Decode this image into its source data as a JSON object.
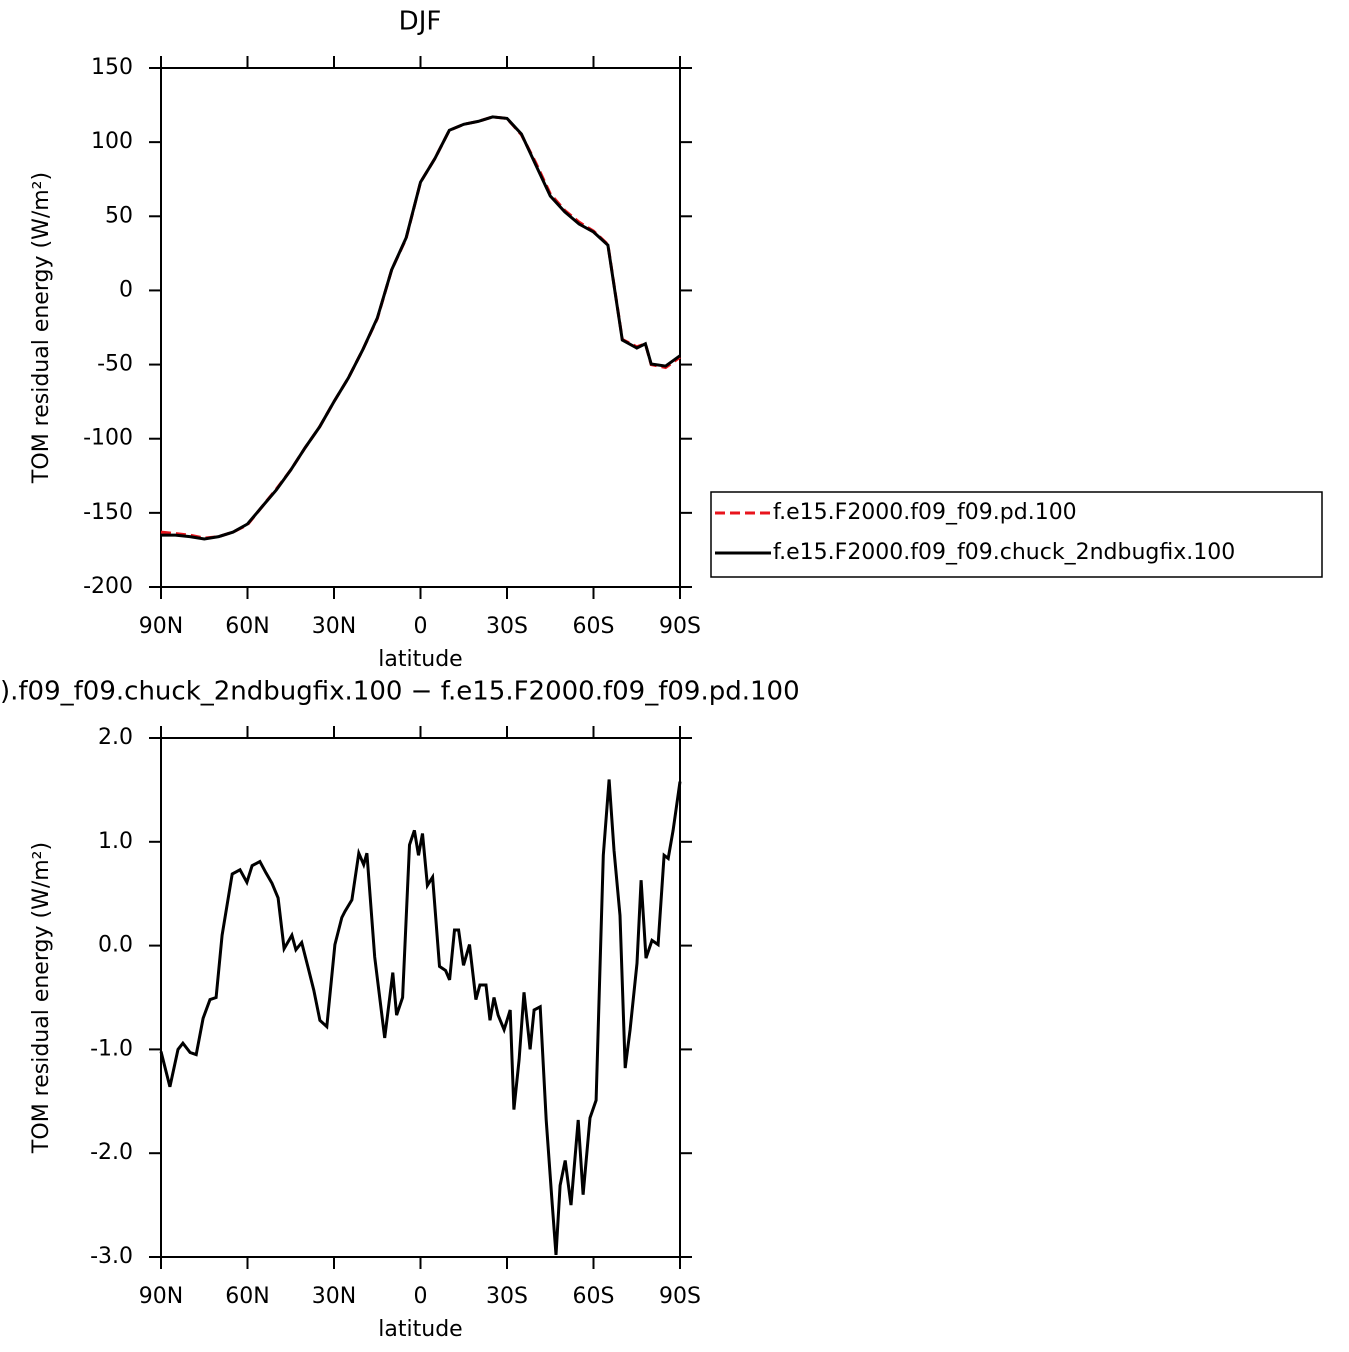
{
  "chart_data": [
    {
      "type": "line",
      "title": "DJF",
      "xlabel": "latitude",
      "ylabel": "TOM residual energy (W/m²)",
      "xlim": [
        90,
        -90
      ],
      "xticks": [
        {
          "value": 90,
          "label": "90N"
        },
        {
          "value": 60,
          "label": "60N"
        },
        {
          "value": 30,
          "label": "30N"
        },
        0,
        {
          "value": -30,
          "label": "30S"
        },
        {
          "value": -60,
          "label": "60S"
        },
        {
          "value": -90,
          "label": "90S"
        }
      ],
      "ylim": [
        -200,
        150
      ],
      "yticks": [
        150,
        100,
        50,
        0,
        -50,
        -100,
        -150,
        -200
      ],
      "legend": "right",
      "x": [
        90,
        85,
        80,
        75,
        70,
        65,
        60,
        55,
        50,
        45,
        40,
        35,
        30,
        25,
        20,
        15,
        10,
        5,
        0,
        -5,
        -10,
        -15,
        -20,
        -25,
        -30,
        -35,
        -40,
        -45,
        -50,
        -55,
        -60,
        -65,
        -70,
        -75,
        -78,
        -80,
        -85,
        -90
      ],
      "series": [
        {
          "name": "f.e15.F2000.f09_f09.pd.100",
          "color": "#e8141c",
          "style": "dashed",
          "values": [
            -163,
            -164,
            -165,
            -167,
            -166,
            -163,
            -158,
            -146,
            -134,
            -121,
            -106,
            -92,
            -75,
            -59,
            -40,
            -19,
            14,
            35,
            73,
            89,
            108,
            112,
            114,
            117,
            116,
            105,
            86,
            65,
            54,
            46,
            40,
            31,
            -33,
            -38,
            -36,
            -50,
            -52,
            -45
          ]
        },
        {
          "name": "f.e15.F2000.f09_f09.chuck_2ndbugfix.100",
          "color": "#000000",
          "style": "solid",
          "values": [
            -165,
            -165,
            -166,
            -167.6,
            -166,
            -163,
            -157.5,
            -146,
            -134.6,
            -121,
            -106,
            -92,
            -75,
            -59,
            -40,
            -18.6,
            14,
            35.4,
            73,
            89,
            108,
            112,
            114,
            117,
            116,
            105.5,
            84.6,
            63.7,
            53,
            44.8,
            39.4,
            30.6,
            -33.4,
            -38.8,
            -36,
            -49.6,
            -51,
            -44
          ]
        }
      ]
    },
    {
      "type": "line",
      "title": ").f09_f09.chuck_2ndbugfix.100 − f.e15.F2000.f09_f09.pd.100",
      "xlabel": "latitude",
      "ylabel": "TOM residual energy (W/m²)",
      "xlim": [
        90,
        -90
      ],
      "xticks": [
        {
          "value": 90,
          "label": "90N"
        },
        {
          "value": 60,
          "label": "60N"
        },
        {
          "value": 30,
          "label": "30N"
        },
        0,
        {
          "value": -30,
          "label": "30S"
        },
        {
          "value": -60,
          "label": "60S"
        },
        {
          "value": -90,
          "label": "90S"
        }
      ],
      "ylim": [
        -3,
        2
      ],
      "yticks": [
        {
          "value": 2,
          "label": "2.0"
        },
        {
          "value": 1,
          "label": "1.0"
        },
        {
          "value": 0,
          "label": "0.0"
        },
        {
          "value": -1,
          "label": "-1.0"
        },
        {
          "value": -2,
          "label": "-2.0"
        },
        {
          "value": -3,
          "label": "-3.0"
        }
      ],
      "x": [
        90,
        86.9,
        84.1,
        82.4,
        79.9,
        77.8,
        75.4,
        73.0,
        70.9,
        68.8,
        65.3,
        62.6,
        60.2,
        58.4,
        55.7,
        53.6,
        51.5,
        49.4,
        47.3,
        44.6,
        43.2,
        41.2,
        39.1,
        37.0,
        34.9,
        32.5,
        29.7,
        27.3,
        26.2,
        23.8,
        21.4,
        19.7,
        18.6,
        15.9,
        12.4,
        9.6,
        8.3,
        6.2,
        3.8,
        2.1,
        0.7,
        -0.7,
        -2.4,
        -4.2,
        -6.6,
        -8.7,
        -10.1,
        -11.8,
        -13.2,
        -14.9,
        -17.0,
        -19.2,
        -20.6,
        -22.7,
        -24.1,
        -25.5,
        -26.9,
        -29.0,
        -31.1,
        -32.4,
        -34.2,
        -35.9,
        -38.0,
        -39.4,
        -41.5,
        -43.6,
        -45.7,
        -47.0,
        -48.4,
        -50.2,
        -52.2,
        -54.7,
        -56.4,
        -58.8,
        -60.9,
        -63.4,
        -65.4,
        -67.1,
        -69.2,
        -71.0,
        -72.7,
        -75.1,
        -76.5,
        -78.2,
        -80.3,
        -82.4,
        -84.5,
        -85.9,
        -87.6,
        -90
      ],
      "series": [
        {
          "name": null,
          "color": "#000000",
          "style": "solid",
          "values": [
            -1.02,
            -1.36,
            -1.0,
            -0.94,
            -1.03,
            -1.05,
            -0.7,
            -0.52,
            -0.5,
            0.1,
            0.69,
            0.73,
            0.61,
            0.77,
            0.81,
            0.7,
            0.6,
            0.46,
            -0.03,
            0.1,
            -0.04,
            0.03,
            -0.2,
            -0.43,
            -0.72,
            -0.78,
            0.01,
            0.27,
            0.33,
            0.44,
            0.89,
            0.78,
            0.89,
            -0.11,
            -0.89,
            -0.26,
            -0.67,
            -0.5,
            0.97,
            1.11,
            0.87,
            1.08,
            0.58,
            0.66,
            -0.2,
            -0.24,
            -0.33,
            0.15,
            0.15,
            -0.19,
            0.01,
            -0.52,
            -0.38,
            -0.38,
            -0.72,
            -0.5,
            -0.67,
            -0.81,
            -0.62,
            -1.58,
            -1.1,
            -0.45,
            -1.0,
            -0.62,
            -0.59,
            -1.68,
            -2.5,
            -2.98,
            -2.31,
            -2.07,
            -2.5,
            -1.68,
            -2.4,
            -1.66,
            -1.49,
            0.87,
            1.6,
            0.92,
            0.29,
            -1.18,
            -0.81,
            -0.17,
            0.63,
            -0.12,
            0.05,
            0.01,
            0.87,
            0.84,
            1.11,
            1.58
          ]
        }
      ]
    }
  ]
}
